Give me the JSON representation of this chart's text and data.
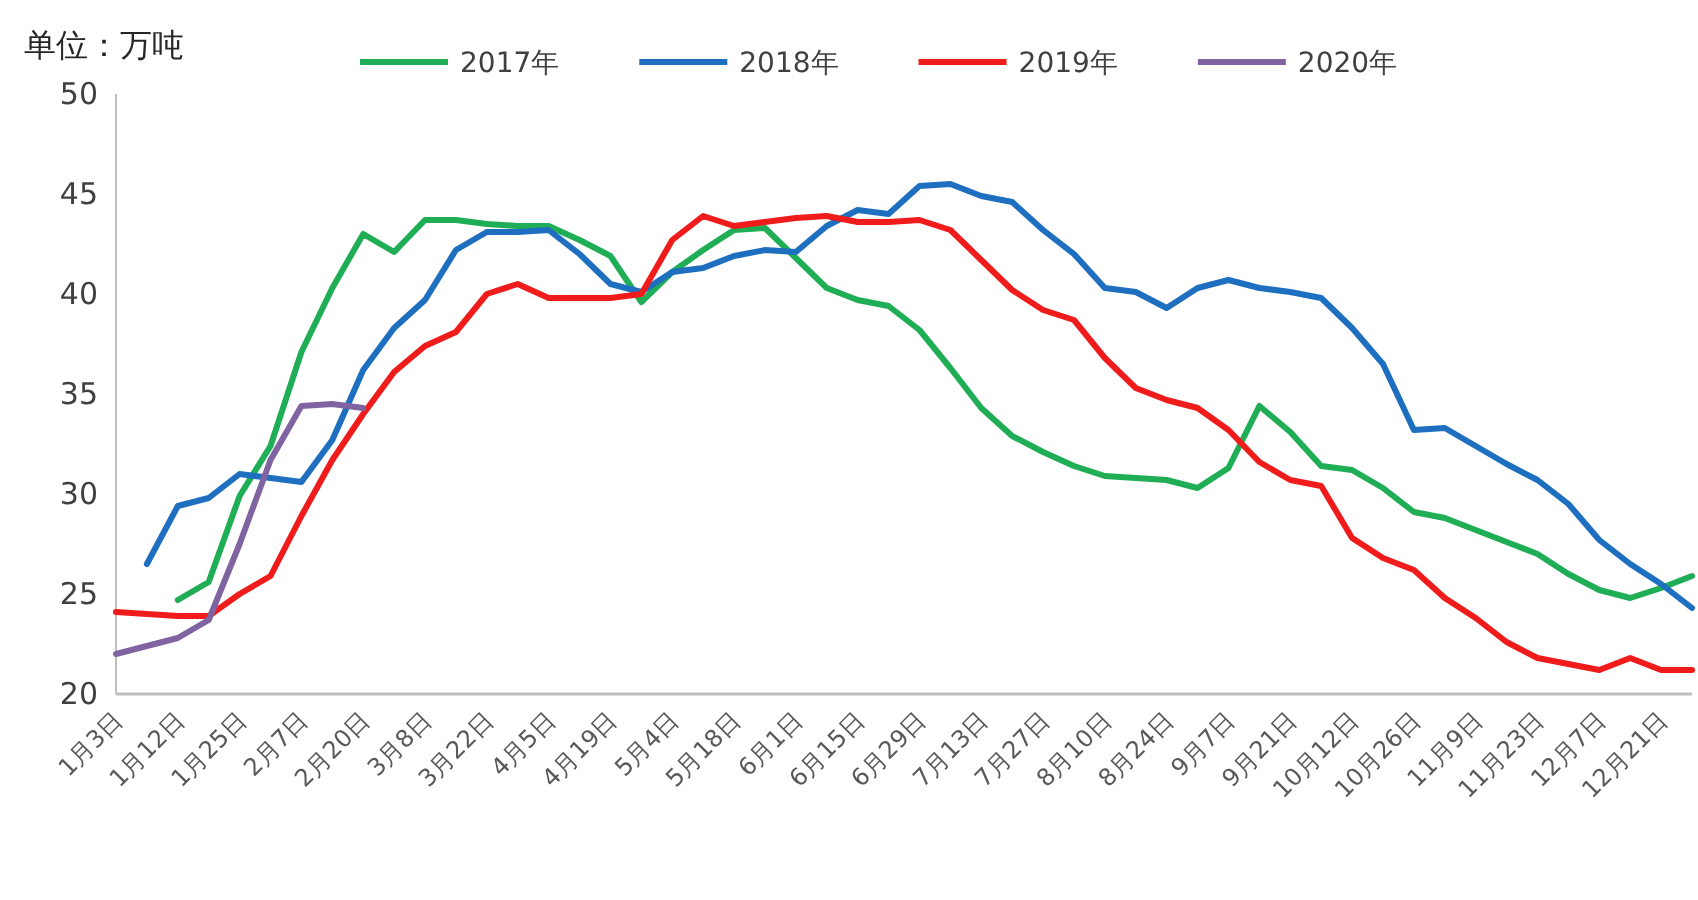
{
  "chart_data": {
    "type": "line",
    "ylabel": "单位：万吨",
    "categories": [
      "1月3日",
      null,
      "1月12日",
      null,
      "1月25日",
      null,
      "2月7日",
      null,
      "2月20日",
      null,
      "3月8日",
      null,
      "3月22日",
      null,
      "4月5日",
      null,
      "4月19日",
      null,
      "5月4日",
      null,
      "5月18日",
      null,
      "6月1日",
      null,
      "6月15日",
      null,
      "6月29日",
      null,
      "7月13日",
      null,
      "7月27日",
      null,
      "8月10日",
      null,
      "8月24日",
      null,
      "9月7日",
      null,
      "9月21日",
      null,
      "10月12日",
      null,
      "10月26日",
      null,
      "11月9日",
      null,
      "11月23日",
      null,
      "12月7日",
      null,
      "12月21日",
      null
    ],
    "series": [
      {
        "name": "2017年",
        "color": "#1fae55",
        "values": [
          null,
          null,
          24.7,
          25.6,
          29.9,
          32.4,
          37.1,
          40.3,
          43.0,
          42.1,
          43.7,
          43.7,
          43.5,
          43.4,
          43.4,
          42.7,
          41.9,
          39.6,
          41.1,
          42.2,
          43.2,
          43.3,
          41.8,
          40.3,
          39.7,
          39.4,
          38.2,
          36.3,
          34.3,
          32.9,
          32.1,
          31.4,
          30.9,
          30.8,
          30.7,
          30.3,
          31.3,
          34.4,
          33.1,
          31.4,
          31.2,
          30.3,
          29.1,
          28.8,
          28.2,
          27.6,
          27.0,
          26.0,
          25.2,
          24.8,
          25.3,
          25.9
        ]
      },
      {
        "name": "2018年",
        "color": "#1f6fc0",
        "values": [
          null,
          26.5,
          29.4,
          29.8,
          31.0,
          30.8,
          30.6,
          32.7,
          36.2,
          38.3,
          39.7,
          42.2,
          43.1,
          43.1,
          43.2,
          42.0,
          40.5,
          40.1,
          41.1,
          41.3,
          41.9,
          42.2,
          42.1,
          43.4,
          44.2,
          44.0,
          45.4,
          45.5,
          44.9,
          44.6,
          43.2,
          42.0,
          40.3,
          40.1,
          39.3,
          40.3,
          40.7,
          40.3,
          40.1,
          39.8,
          38.3,
          36.5,
          33.2,
          33.3,
          32.4,
          31.5,
          30.7,
          29.5,
          27.7,
          26.5,
          25.5,
          24.3
        ]
      },
      {
        "name": "2019年",
        "color": "#f01c1c",
        "values": [
          24.1,
          24.0,
          23.9,
          23.9,
          25.0,
          25.9,
          28.9,
          31.7,
          34.0,
          36.1,
          37.4,
          38.1,
          40.0,
          40.5,
          39.8,
          39.8,
          39.8,
          40.0,
          42.7,
          43.9,
          43.4,
          43.6,
          43.8,
          43.9,
          43.6,
          43.6,
          43.7,
          43.2,
          41.7,
          40.2,
          39.2,
          38.7,
          36.8,
          35.3,
          34.7,
          34.3,
          33.2,
          31.6,
          30.7,
          30.4,
          27.8,
          26.8,
          26.2,
          24.8,
          23.8,
          22.6,
          21.8,
          21.5,
          21.2,
          21.8,
          21.2,
          21.2
        ]
      },
      {
        "name": "2020年",
        "color": "#8064a2",
        "values": [
          22.0,
          22.4,
          22.8,
          23.7,
          27.5,
          31.7,
          34.4,
          34.5,
          34.3,
          null,
          null,
          null,
          null,
          null,
          null,
          null,
          null,
          null,
          null,
          null,
          null,
          null,
          null,
          null,
          null,
          null,
          null,
          null,
          null,
          null,
          null,
          null,
          null,
          null,
          null,
          null,
          null,
          null,
          null,
          null,
          null,
          null,
          null,
          null,
          null,
          null,
          null,
          null,
          null,
          null,
          null,
          null
        ]
      }
    ],
    "ylim": [
      20,
      50
    ],
    "yticks": [
      20,
      25,
      30,
      35,
      40,
      45,
      50
    ],
    "grid": false,
    "legend": "top",
    "marker": "none",
    "line_style": "solid"
  }
}
